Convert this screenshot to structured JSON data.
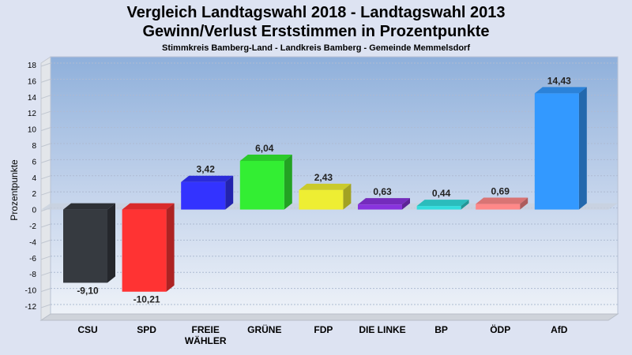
{
  "chart_data": {
    "type": "bar",
    "title_line1": "Vergleich Landtagswahl 2018 - Landtagswahl 2013",
    "title_line2": "Gewinn/Verlust Erststimmen in Prozentpunkte",
    "subtitle": "Stimmkreis Bamberg-Land - Landkreis Bamberg - Gemeinde Memmelsdorf",
    "ylabel": "Prozentpunkte",
    "xlabel": "",
    "ylim": [
      -12,
      18
    ],
    "yticks": [
      18,
      16,
      14,
      12,
      10,
      8,
      6,
      4,
      2,
      0,
      -2,
      -4,
      -6,
      -8,
      -10,
      -12
    ],
    "categories": [
      "CSU",
      "SPD",
      "FREIE\nWÄHLER",
      "GRÜNE",
      "FDP",
      "DIE LINKE",
      "BP",
      "ÖDP",
      "AfD"
    ],
    "values": [
      -9.1,
      -10.21,
      3.42,
      6.04,
      2.43,
      0.63,
      0.44,
      0.69,
      14.43
    ],
    "value_labels": [
      "-9,10",
      "-10,21",
      "3,42",
      "6,04",
      "2,43",
      "0,63",
      "0,44",
      "0,69",
      "14,43"
    ],
    "colors": [
      "#363a40",
      "#ff3333",
      "#3333ff",
      "#33ee33",
      "#eeee33",
      "#8833dd",
      "#33dddd",
      "#ff8888",
      "#3399ff"
    ],
    "grid": true,
    "legend": "none"
  }
}
